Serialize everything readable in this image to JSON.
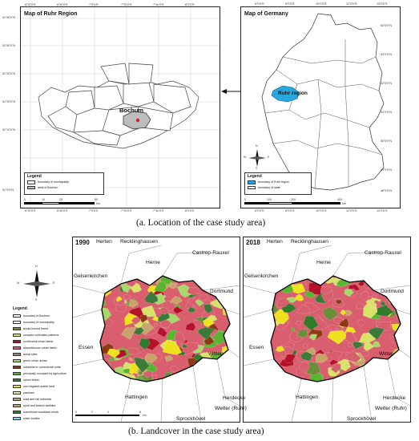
{
  "panel_a": {
    "left_map": {
      "title": "Map of Ruhr Region",
      "top_ticks": [
        "6°20'0\"E",
        "6°40'0\"E",
        "7°0'0\"E",
        "7°20'0\"E",
        "7°40'0\"E",
        "8°0'0\"E"
      ],
      "bottom_ticks": [
        "6°20'0\"E",
        "6°40'0\"E",
        "7°0'0\"E",
        "7°20'0\"E",
        "7°40'0\"E",
        "8°0'0\"E"
      ],
      "left_ticks": [
        "51°50'0\"N",
        "51°40'0\"N",
        "51°30'0\"N",
        "51°20'0\"N",
        "51°10'0\"N",
        "51°0'0\"N"
      ],
      "city_label": "Bochum",
      "legend_title": "Legend",
      "legend_items": [
        {
          "label": "boundary of municipality",
          "color": "#ffffff"
        },
        {
          "label": "area of Bochum",
          "color": "#bdbdbd"
        }
      ],
      "scale_labels": [
        "0",
        "10",
        "20",
        "40"
      ],
      "scale_unit": "km"
    },
    "right_map": {
      "title": "Map of Germany",
      "top_ticks": [
        "6°0'0\"E",
        "8°0'0\"E",
        "10°0'0\"E",
        "12°0'0\"E",
        "14°0'0\"E"
      ],
      "bottom_ticks": [
        "6°0'0\"E",
        "8°0'0\"E",
        "10°0'0\"E",
        "12°0'0\"E",
        "14°0'0\"E"
      ],
      "right_ticks": [
        "54°0'0\"N",
        "53°0'0\"N",
        "52°0'0\"N",
        "51°0'0\"N",
        "50°0'0\"N",
        "49°0'0\"N",
        "48°0'0\"N"
      ],
      "region_label": "Ruhr region",
      "legend_title": "Legend",
      "legend_items": [
        {
          "label": "boundary of Ruhr region",
          "color": "#29a8e0"
        },
        {
          "label": "boundary of state",
          "color": "#ffffff"
        }
      ],
      "scale_labels": [
        "0",
        "100",
        "200",
        "400"
      ],
      "scale_unit": "km",
      "compass": {
        "n": "N",
        "s": "S",
        "e": "E",
        "w": "W"
      }
    },
    "caption": "(a. Location of the case study area)"
  },
  "panel_b": {
    "map_1990": {
      "year": "1990",
      "cities": [
        "Herten",
        "Recklinghausen",
        "Herne",
        "Castrop-Rauxel",
        "Gelsenkirchen",
        "Dortmund",
        "Essen",
        "Witten",
        "Hattingen",
        "Herdecke",
        "Wetter (Ruhr)",
        "Sprockhövel"
      ]
    },
    "map_2018": {
      "year": "2018",
      "cities": [
        "Herten",
        "Recklinghausen",
        "Herne",
        "Castrop-Rauxel",
        "Gelsenkirchen",
        "Dortmund",
        "Essen",
        "Witten",
        "Hattingen",
        "Herdecke",
        "Wetter (Ruhr)",
        "Sprockhövel"
      ]
    },
    "compass": {
      "n": "N",
      "s": "S",
      "e": "E",
      "w": "W"
    },
    "legend_title": "Legend",
    "legend_items": [
      {
        "label": "boundary of Bochum",
        "color": "#ffffff"
      },
      {
        "label": "boundary of municipality",
        "color": "#ffffff"
      },
      {
        "label": "broad-leaved forest",
        "color": "#6b8e3a"
      },
      {
        "label": "complex cultivation patterns",
        "color": "#d9e36a"
      },
      {
        "label": "continuous urban fabric",
        "color": "#b5122a"
      },
      {
        "label": "discontinuous urban fabric",
        "color": "#d95f6e"
      },
      {
        "label": "dump sites",
        "color": "#a08a6a"
      },
      {
        "label": "green urban areas",
        "color": "#a6d96a"
      },
      {
        "label": "industrial or commercial units",
        "color": "#8a3b12"
      },
      {
        "label": "principally occupied by agriculture",
        "color": "#5ab531"
      },
      {
        "label": "mixed forest",
        "color": "#3c7a3a"
      },
      {
        "label": "non-irrigated arable land",
        "color": "#f0e11e"
      },
      {
        "label": "pastures",
        "color": "#e6f0a0"
      },
      {
        "label": "road and rail networks",
        "color": "#c0a080"
      },
      {
        "label": "sport and leisure facilities",
        "color": "#c8a46a"
      },
      {
        "label": "transitional woodland-shrub",
        "color": "#2f7d2a"
      },
      {
        "label": "water bodies",
        "color": "#7fd4ef"
      }
    ],
    "scale_labels": [
      "0",
      "2",
      "4",
      "8"
    ],
    "scale_unit": "km",
    "caption": "(b. Landcover in the case study area)"
  }
}
